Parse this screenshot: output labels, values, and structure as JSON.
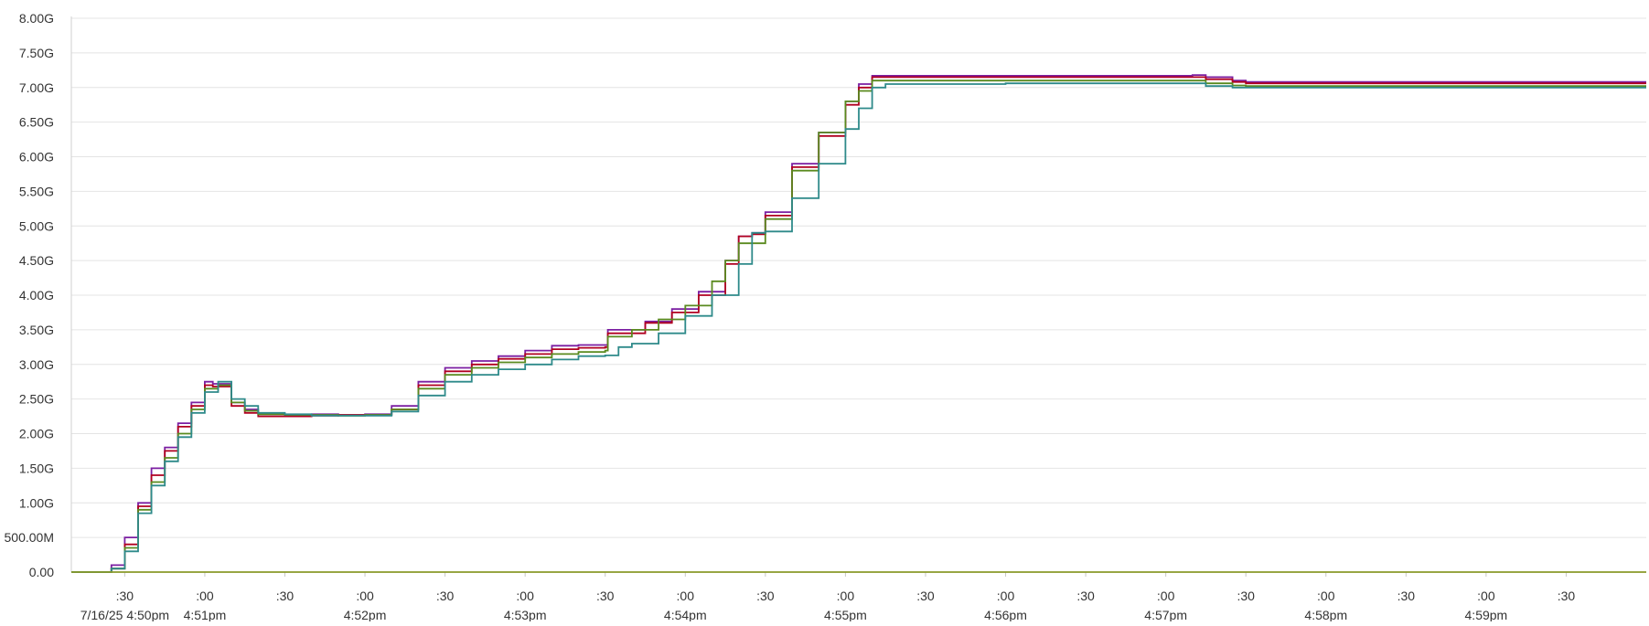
{
  "chart_data": {
    "type": "line",
    "title": "",
    "xlabel": "",
    "ylabel": "",
    "x_unit": "seconds",
    "xlim": [
      -50,
      540
    ],
    "ylim": [
      0,
      8
    ],
    "y_tick_values": [
      0,
      0.5,
      1,
      1.5,
      2,
      2.5,
      3,
      3.5,
      4,
      4.5,
      5,
      5.5,
      6,
      6.5,
      7,
      7.5,
      8
    ],
    "y_tick_labels": [
      "0.00",
      "500.00M",
      "1.00G",
      "1.50G",
      "2.00G",
      "2.50G",
      "3.00G",
      "3.50G",
      "4.00G",
      "4.50G",
      "5.00G",
      "5.50G",
      "6.00G",
      "6.50G",
      "7.00G",
      "7.50G",
      "8.00G"
    ],
    "x_ticks": [
      {
        "t": -30,
        "label": ":30",
        "sub": "7/16/25 4:50pm"
      },
      {
        "t": 0,
        "label": ":00",
        "sub": "4:51pm"
      },
      {
        "t": 30,
        "label": ":30",
        "sub": ""
      },
      {
        "t": 60,
        "label": ":00",
        "sub": "4:52pm"
      },
      {
        "t": 90,
        "label": ":30",
        "sub": ""
      },
      {
        "t": 120,
        "label": ":00",
        "sub": "4:53pm"
      },
      {
        "t": 150,
        "label": ":30",
        "sub": ""
      },
      {
        "t": 180,
        "label": ":00",
        "sub": "4:54pm"
      },
      {
        "t": 210,
        "label": ":30",
        "sub": ""
      },
      {
        "t": 240,
        "label": ":00",
        "sub": "4:55pm"
      },
      {
        "t": 270,
        "label": ":30",
        "sub": ""
      },
      {
        "t": 300,
        "label": ":00",
        "sub": "4:56pm"
      },
      {
        "t": 330,
        "label": ":30",
        "sub": ""
      },
      {
        "t": 360,
        "label": ":00",
        "sub": "4:57pm"
      },
      {
        "t": 390,
        "label": ":30",
        "sub": ""
      },
      {
        "t": 420,
        "label": ":00",
        "sub": "4:58pm"
      },
      {
        "t": 450,
        "label": ":30",
        "sub": ""
      },
      {
        "t": 480,
        "label": ":00",
        "sub": "4:59pm"
      },
      {
        "t": 510,
        "label": ":30",
        "sub": ""
      }
    ],
    "grid": true,
    "legend": "none",
    "series": [
      {
        "color": "#7b1fa2",
        "points": [
          [
            -50,
            0
          ],
          [
            -40,
            0
          ],
          [
            -35,
            0.1
          ],
          [
            -30,
            0.5
          ],
          [
            -25,
            1.0
          ],
          [
            -20,
            1.5
          ],
          [
            -15,
            1.8
          ],
          [
            -10,
            2.15
          ],
          [
            -5,
            2.45
          ],
          [
            0,
            2.75
          ],
          [
            3,
            2.72
          ],
          [
            10,
            2.45
          ],
          [
            15,
            2.35
          ],
          [
            20,
            2.28
          ],
          [
            30,
            2.26
          ],
          [
            40,
            2.28
          ],
          [
            50,
            2.27
          ],
          [
            60,
            2.28
          ],
          [
            70,
            2.4
          ],
          [
            80,
            2.75
          ],
          [
            90,
            2.95
          ],
          [
            100,
            3.05
          ],
          [
            110,
            3.12
          ],
          [
            120,
            3.2
          ],
          [
            130,
            3.27
          ],
          [
            140,
            3.28
          ],
          [
            150,
            3.28
          ],
          [
            151,
            3.5
          ],
          [
            165,
            3.62
          ],
          [
            175,
            3.8
          ],
          [
            185,
            4.05
          ],
          [
            195,
            4.5
          ],
          [
            200,
            4.85
          ],
          [
            205,
            4.9
          ],
          [
            210,
            5.2
          ],
          [
            220,
            5.9
          ],
          [
            230,
            6.35
          ],
          [
            240,
            6.8
          ],
          [
            245,
            7.05
          ],
          [
            250,
            7.17
          ],
          [
            300,
            7.17
          ],
          [
            340,
            7.17
          ],
          [
            370,
            7.18
          ],
          [
            375,
            7.15
          ],
          [
            385,
            7.1
          ],
          [
            390,
            7.08
          ],
          [
            400,
            7.08
          ],
          [
            540,
            7.08
          ]
        ]
      },
      {
        "color": "#b00020",
        "points": [
          [
            -50,
            0
          ],
          [
            -40,
            0
          ],
          [
            -35,
            0.05
          ],
          [
            -30,
            0.4
          ],
          [
            -25,
            0.95
          ],
          [
            -20,
            1.4
          ],
          [
            -15,
            1.75
          ],
          [
            -10,
            2.1
          ],
          [
            -5,
            2.4
          ],
          [
            0,
            2.7
          ],
          [
            3,
            2.68
          ],
          [
            10,
            2.4
          ],
          [
            15,
            2.3
          ],
          [
            20,
            2.25
          ],
          [
            30,
            2.25
          ],
          [
            40,
            2.26
          ],
          [
            50,
            2.27
          ],
          [
            60,
            2.27
          ],
          [
            70,
            2.35
          ],
          [
            80,
            2.7
          ],
          [
            90,
            2.9
          ],
          [
            100,
            3.0
          ],
          [
            110,
            3.08
          ],
          [
            120,
            3.15
          ],
          [
            130,
            3.22
          ],
          [
            140,
            3.24
          ],
          [
            150,
            3.25
          ],
          [
            151,
            3.45
          ],
          [
            165,
            3.6
          ],
          [
            175,
            3.75
          ],
          [
            185,
            4.0
          ],
          [
            195,
            4.45
          ],
          [
            200,
            4.85
          ],
          [
            205,
            4.88
          ],
          [
            210,
            5.15
          ],
          [
            220,
            5.85
          ],
          [
            230,
            6.3
          ],
          [
            240,
            6.75
          ],
          [
            245,
            7.0
          ],
          [
            250,
            7.15
          ],
          [
            300,
            7.15
          ],
          [
            340,
            7.15
          ],
          [
            370,
            7.15
          ],
          [
            375,
            7.12
          ],
          [
            385,
            7.08
          ],
          [
            390,
            7.06
          ],
          [
            400,
            7.06
          ],
          [
            540,
            7.06
          ]
        ]
      },
      {
        "color": "#5a8a1f",
        "points": [
          [
            -50,
            0
          ],
          [
            -40,
            0
          ],
          [
            -35,
            0.05
          ],
          [
            -30,
            0.35
          ],
          [
            -25,
            0.9
          ],
          [
            -20,
            1.3
          ],
          [
            -15,
            1.65
          ],
          [
            -10,
            2.0
          ],
          [
            -5,
            2.35
          ],
          [
            0,
            2.65
          ],
          [
            5,
            2.7
          ],
          [
            10,
            2.45
          ],
          [
            15,
            2.33
          ],
          [
            20,
            2.28
          ],
          [
            30,
            2.27
          ],
          [
            40,
            2.27
          ],
          [
            50,
            2.26
          ],
          [
            60,
            2.27
          ],
          [
            70,
            2.35
          ],
          [
            80,
            2.65
          ],
          [
            90,
            2.85
          ],
          [
            100,
            2.95
          ],
          [
            110,
            3.03
          ],
          [
            120,
            3.1
          ],
          [
            130,
            3.15
          ],
          [
            140,
            3.18
          ],
          [
            150,
            3.2
          ],
          [
            151,
            3.4
          ],
          [
            160,
            3.5
          ],
          [
            170,
            3.65
          ],
          [
            180,
            3.85
          ],
          [
            190,
            4.2
          ],
          [
            195,
            4.5
          ],
          [
            200,
            4.75
          ],
          [
            210,
            5.1
          ],
          [
            220,
            5.8
          ],
          [
            230,
            6.35
          ],
          [
            240,
            6.8
          ],
          [
            245,
            6.95
          ],
          [
            250,
            7.1
          ],
          [
            300,
            7.1
          ],
          [
            340,
            7.1
          ],
          [
            370,
            7.1
          ],
          [
            375,
            7.06
          ],
          [
            385,
            7.03
          ],
          [
            390,
            7.02
          ],
          [
            540,
            7.02
          ]
        ]
      },
      {
        "color": "#2e8a8a",
        "points": [
          [
            -50,
            0
          ],
          [
            -40,
            0
          ],
          [
            -35,
            0.05
          ],
          [
            -30,
            0.3
          ],
          [
            -25,
            0.85
          ],
          [
            -20,
            1.25
          ],
          [
            -15,
            1.6
          ],
          [
            -10,
            1.95
          ],
          [
            -5,
            2.3
          ],
          [
            0,
            2.6
          ],
          [
            5,
            2.75
          ],
          [
            10,
            2.5
          ],
          [
            15,
            2.4
          ],
          [
            20,
            2.3
          ],
          [
            30,
            2.28
          ],
          [
            40,
            2.26
          ],
          [
            50,
            2.26
          ],
          [
            60,
            2.26
          ],
          [
            70,
            2.32
          ],
          [
            80,
            2.55
          ],
          [
            90,
            2.75
          ],
          [
            100,
            2.85
          ],
          [
            110,
            2.93
          ],
          [
            120,
            3.0
          ],
          [
            130,
            3.07
          ],
          [
            140,
            3.12
          ],
          [
            150,
            3.13
          ],
          [
            155,
            3.25
          ],
          [
            160,
            3.3
          ],
          [
            170,
            3.45
          ],
          [
            180,
            3.7
          ],
          [
            190,
            4.0
          ],
          [
            200,
            4.45
          ],
          [
            205,
            4.9
          ],
          [
            210,
            4.92
          ],
          [
            220,
            5.4
          ],
          [
            230,
            5.9
          ],
          [
            240,
            6.4
          ],
          [
            245,
            6.7
          ],
          [
            250,
            7.0
          ],
          [
            255,
            7.05
          ],
          [
            300,
            7.06
          ],
          [
            370,
            7.06
          ],
          [
            375,
            7.02
          ],
          [
            385,
            7.0
          ],
          [
            540,
            7.0
          ]
        ]
      },
      {
        "color": "#8a9a2a",
        "points": [
          [
            -50,
            0
          ],
          [
            540,
            0
          ]
        ]
      }
    ]
  }
}
